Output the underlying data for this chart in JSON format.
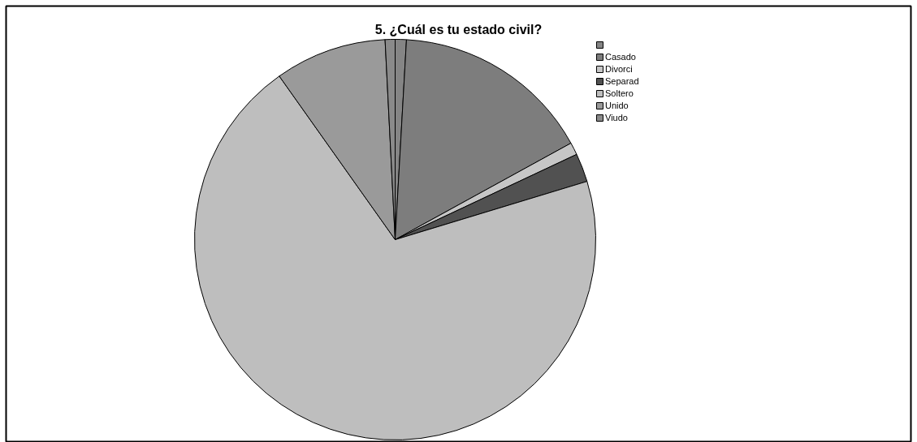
{
  "chart_data": {
    "type": "pie",
    "title": "5. ¿Cuál es tu estado civil?",
    "categories": [
      null,
      "Casado",
      "Divorci",
      "Separad",
      "Soltero",
      "Unido",
      "Viudo"
    ],
    "values": [
      0.9,
      16.1,
      1.0,
      2.3,
      69.9,
      9.0,
      0.8
    ],
    "colors": [
      "#858585",
      "#7d7d7d",
      "#c6c6c6",
      "#515151",
      "#bebebe",
      "#9a9a9a",
      "#8a8a8a"
    ],
    "legend": "top right"
  }
}
